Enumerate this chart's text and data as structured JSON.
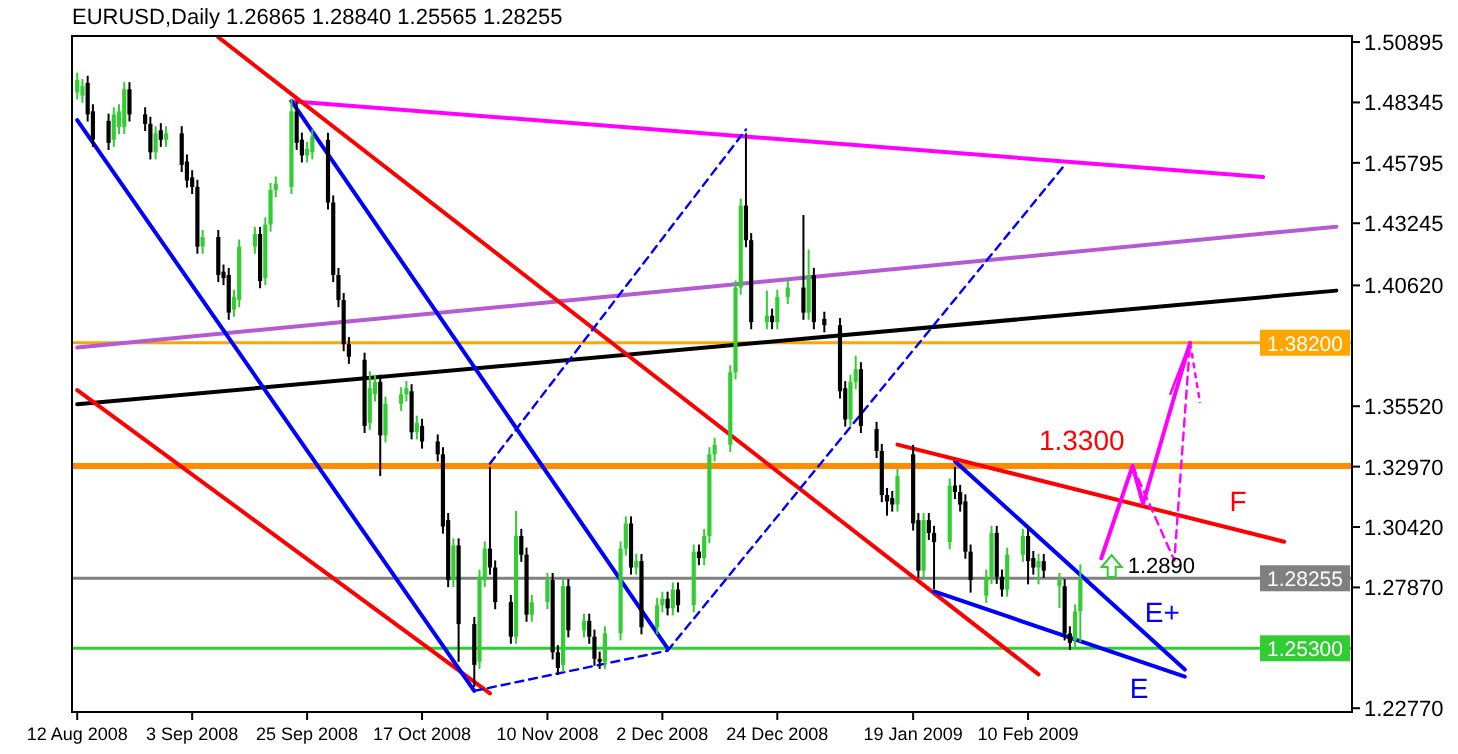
{
  "chart_data": {
    "type": "candlestick",
    "title": "EURUSD,Daily 1.26865 1.28840 1.25565 1.28255",
    "colors": [
      "#32cd32",
      "#32cd32",
      "#000000",
      "#000000",
      "#000000",
      "#32cd32",
      "#32cd32",
      "#32cd32",
      "#000000",
      "#000000",
      "#000000",
      "#32cd32",
      "#000000",
      "#32cd32",
      "#000000",
      "#000000",
      "#000000",
      "#000000",
      "#32cd32",
      "#000000",
      "#000000",
      "#000000",
      "#32cd32",
      "#32cd32",
      "#32cd32",
      "#000000",
      "#32cd32",
      "#32cd32",
      "#32cd32",
      "#32cd32",
      "#000000",
      "#000000",
      "#32cd32",
      "#32cd32",
      "#000000",
      "#000000",
      "#000000",
      "#000000",
      "#000000",
      "#000000",
      "#32cd32",
      "#32cd32",
      "#000000",
      "#32cd32",
      "#32cd32",
      "#32cd32",
      "#000000",
      "#32cd32",
      "#000000",
      "#000000",
      "#000000",
      "#000000",
      "#32cd32",
      "#000000",
      "#000000",
      "#32cd32",
      "#32cd32",
      "#000000",
      "#000000",
      "#000000",
      "#32cd32",
      "#000000",
      "#000000",
      "#32cd32",
      "#32cd32",
      "#000000",
      "#000000",
      "#32cd32",
      "#000000",
      "#32cd32",
      "#000000",
      "#000000",
      "#000000",
      "#32cd32",
      "#32cd32",
      "#32cd32",
      "#000000",
      "#32cd32",
      "#000000",
      "#32cd32",
      "#32cd32",
      "#000000",
      "#32cd32",
      "#000000",
      "#32cd32",
      "#000000",
      "#32cd32",
      "#32cd32",
      "#32cd32",
      "#32cd32",
      "#32cd32",
      "#32cd32",
      "#000000",
      "#000000",
      "#32cd32",
      "#000000",
      "#32cd32",
      "#32cd32",
      "#000000",
      "#32cd32",
      "#000000",
      "#000000",
      "#000000",
      "#000000",
      "#32cd32",
      "#32cd32",
      "#000000",
      "#000000",
      "#000000",
      "#000000",
      "#000000",
      "#32cd32",
      "#000000",
      "#000000",
      "#32cd32",
      "#000000",
      "#000000",
      "#32cd32",
      "#000000",
      "#000000",
      "#000000",
      "#000000",
      "#32cd32",
      "#32cd32",
      "#000000",
      "#000000",
      "#32cd32",
      "#32cd32",
      "#000000",
      "#000000",
      "#32cd32",
      "#000000",
      "#32cd32",
      "#000000",
      "#000000",
      "#32cd32",
      "#32cd32"
    ],
    "xlim": [
      "2008-08-11",
      "2009-04-13"
    ],
    "xticks": [
      {
        "value": "2008-08-12",
        "label": "12 Aug 2008"
      },
      {
        "value": "2008-09-03",
        "label": "3 Sep 2008"
      },
      {
        "value": "2008-09-25",
        "label": "25 Sep 2008"
      },
      {
        "value": "2008-10-17",
        "label": "17 Oct 2008"
      },
      {
        "value": "2008-11-10",
        "label": "10 Nov 2008"
      },
      {
        "value": "2008-12-02",
        "label": "2 Dec 2008"
      },
      {
        "value": "2008-12-24",
        "label": "24 Dec 2008"
      },
      {
        "value": "2009-01-19",
        "label": "19 Jan 2009"
      },
      {
        "value": "2009-02-10",
        "label": "10 Feb 2009"
      }
    ],
    "ylim": [
      1.2261,
      1.5115
    ],
    "yticks": [
      1.50895,
      1.48345,
      1.45795,
      1.43245,
      {
        "value": 1.4062,
        "label": "1.40620"
      },
      {
        "value": 1.3552,
        "label": "1.35520"
      },
      {
        "value": 1.3297,
        "label": "1.32970"
      },
      {
        "value": 1.3042,
        "label": "1.30420"
      },
      {
        "value": 1.2787,
        "label": "1.27870"
      },
      {
        "value": 1.2277,
        "label": "1.22770"
      }
    ],
    "x": [
      "2008-08-12",
      "2008-08-13",
      "2008-08-14",
      "2008-08-15",
      "2008-08-18",
      "2008-08-19",
      "2008-08-20",
      "2008-08-21",
      "2008-08-22",
      "2008-08-25",
      "2008-08-26",
      "2008-08-27",
      "2008-08-28",
      "2008-08-29",
      "2008-09-01",
      "2008-09-02",
      "2008-09-03",
      "2008-09-04",
      "2008-09-05",
      "2008-09-08",
      "2008-09-09",
      "2008-09-10",
      "2008-09-11",
      "2008-09-12",
      "2008-09-15",
      "2008-09-16",
      "2008-09-17",
      "2008-09-18",
      "2008-09-19",
      "2008-09-22",
      "2008-09-23",
      "2008-09-24",
      "2008-09-25",
      "2008-09-26",
      "2008-09-29",
      "2008-09-30",
      "2008-10-01",
      "2008-10-02",
      "2008-10-03",
      "2008-10-06",
      "2008-10-07",
      "2008-10-08",
      "2008-10-09",
      "2008-10-10",
      "2008-10-13",
      "2008-10-14",
      "2008-10-15",
      "2008-10-16",
      "2008-10-17",
      "2008-10-20",
      "2008-10-21",
      "2008-10-22",
      "2008-10-23",
      "2008-10-24",
      "2008-10-27",
      "2008-10-28",
      "2008-10-29",
      "2008-10-30",
      "2008-10-31",
      "2008-11-03",
      "2008-11-04",
      "2008-11-05",
      "2008-11-06",
      "2008-11-07",
      "2008-11-10",
      "2008-11-11",
      "2008-11-12",
      "2008-11-13",
      "2008-11-14",
      "2008-11-17",
      "2008-11-18",
      "2008-11-19",
      "2008-11-20",
      "2008-11-21",
      "2008-11-24",
      "2008-11-25",
      "2008-11-26",
      "2008-11-27",
      "2008-11-28",
      "2008-12-01",
      "2008-12-02",
      "2008-12-03",
      "2008-12-04",
      "2008-12-05",
      "2008-12-08",
      "2008-12-09",
      "2008-12-10",
      "2008-12-11",
      "2008-12-12",
      "2008-12-15",
      "2008-12-16",
      "2008-12-17",
      "2008-12-18",
      "2008-12-19",
      "2008-12-22",
      "2008-12-23",
      "2008-12-24",
      "2008-12-26",
      "2008-12-29",
      "2008-12-30",
      "2008-12-31",
      "2009-01-02",
      "2009-01-05",
      "2009-01-06",
      "2009-01-07",
      "2009-01-08",
      "2009-01-09",
      "2009-01-12",
      "2009-01-13",
      "2009-01-14",
      "2009-01-15",
      "2009-01-16",
      "2009-01-19",
      "2009-01-20",
      "2009-01-21",
      "2009-01-22",
      "2009-01-23",
      "2009-01-26",
      "2009-01-27",
      "2009-01-28",
      "2009-01-29",
      "2009-01-30",
      "2009-02-02",
      "2009-02-03",
      "2009-02-04",
      "2009-02-05",
      "2009-02-06",
      "2009-02-09",
      "2009-02-10",
      "2009-02-11",
      "2009-02-12",
      "2009-02-13",
      "2009-02-16",
      "2009-02-17",
      "2009-02-18",
      "2009-02-19",
      "2009-02-20"
    ],
    "ohlc": [
      [
        1.4877,
        1.496,
        1.4847,
        1.493
      ],
      [
        1.4863,
        1.4933,
        1.4833,
        1.4903
      ],
      [
        1.4917,
        1.4947,
        1.4754,
        1.4784
      ],
      [
        1.4797,
        1.4827,
        1.4647,
        1.4677
      ],
      [
        1.4757,
        1.4787,
        1.4634,
        1.4664
      ],
      [
        1.4677,
        1.4814,
        1.4647,
        1.4784
      ],
      [
        1.4731,
        1.4827,
        1.4701,
        1.4797
      ],
      [
        1.4731,
        1.492,
        1.4701,
        1.489
      ],
      [
        1.489,
        1.492,
        1.4754,
        1.4784
      ],
      [
        1.4784,
        1.4814,
        1.4714,
        1.4744
      ],
      [
        1.4744,
        1.4774,
        1.4594,
        1.4624
      ],
      [
        1.4624,
        1.4734,
        1.4594,
        1.4704
      ],
      [
        1.4717,
        1.4747,
        1.4647,
        1.4677
      ],
      [
        1.4677,
        1.4734,
        1.4647,
        1.4704
      ],
      [
        1.4704,
        1.4734,
        1.4541,
        1.4571
      ],
      [
        1.4585,
        1.4615,
        1.4475,
        1.4505
      ],
      [
        1.4518,
        1.4548,
        1.4448,
        1.4478
      ],
      [
        1.4478,
        1.4508,
        1.4196,
        1.4226
      ],
      [
        1.4226,
        1.4296,
        1.4196,
        1.4266
      ],
      [
        1.4266,
        1.4296,
        1.4076,
        1.4106
      ],
      [
        1.412,
        1.415,
        1.4063,
        1.4093
      ],
      [
        1.4106,
        1.4136,
        1.3917,
        1.3947
      ],
      [
        1.396,
        1.4043,
        1.393,
        1.4013
      ],
      [
        1.4,
        1.4256,
        1.397,
        1.4226
      ],
      [
        1.4226,
        1.4309,
        1.4196,
        1.4279
      ],
      [
        1.4279,
        1.4309,
        1.405,
        1.408
      ],
      [
        1.4093,
        1.4349,
        1.4063,
        1.4319
      ],
      [
        1.4319,
        1.4495,
        1.4289,
        1.4465
      ],
      [
        1.4465,
        1.4522,
        1.4435,
        1.4492
      ],
      [
        1.4478,
        1.485,
        1.4448,
        1.4797
      ],
      [
        1.4797,
        1.484,
        1.4634,
        1.4664
      ],
      [
        1.4677,
        1.4707,
        1.4581,
        1.4611
      ],
      [
        1.4611,
        1.4668,
        1.4581,
        1.4638
      ],
      [
        1.4624,
        1.4721,
        1.4594,
        1.4691
      ],
      [
        1.4677,
        1.4707,
        1.4382,
        1.4412
      ],
      [
        1.4412,
        1.4442,
        1.4076,
        1.4106
      ],
      [
        1.4106,
        1.4136,
        1.397,
        1.4
      ],
      [
        1.4,
        1.403,
        1.3784,
        1.3814
      ],
      [
        1.3814,
        1.3844,
        1.3731,
        1.3761
      ],
      [
        1.3748,
        1.3778,
        1.3439,
        1.3469
      ],
      [
        1.3482,
        1.37,
        1.3452,
        1.3628
      ],
      [
        1.3602,
        1.3685,
        1.3572,
        1.3655
      ],
      [
        1.3655,
        1.3685,
        1.3257,
        1.3429
      ],
      [
        1.3429,
        1.3592,
        1.3399,
        1.3562
      ],
      [
        1.3562,
        1.3632,
        1.3532,
        1.3602
      ],
      [
        1.3602,
        1.3658,
        1.3572,
        1.3628
      ],
      [
        1.3615,
        1.3645,
        1.3412,
        1.3442
      ],
      [
        1.3442,
        1.3512,
        1.3412,
        1.3482
      ],
      [
        1.3469,
        1.3499,
        1.3373,
        1.3403
      ],
      [
        1.3403,
        1.3433,
        1.3319,
        1.3349
      ],
      [
        1.3349,
        1.3379,
        1.3014,
        1.3044
      ],
      [
        1.3071,
        1.3101,
        1.2788,
        1.2818
      ],
      [
        1.2818,
        1.2994,
        1.2788,
        1.2964
      ],
      [
        1.2964,
        1.2994,
        1.2473,
        1.2632
      ],
      [
        1.2632,
        1.2662,
        1.2367,
        1.246
      ],
      [
        1.2473,
        1.2862,
        1.2443,
        1.2832
      ],
      [
        1.2818,
        1.2981,
        1.2788,
        1.2951
      ],
      [
        1.2951,
        1.3296,
        1.2841,
        1.2871
      ],
      [
        1.2871,
        1.2901,
        1.2695,
        1.2725
      ],
      [
        1.2725,
        1.2755,
        1.2549,
        1.2579
      ],
      [
        1.2579,
        1.311,
        1.2549,
        1.3004
      ],
      [
        1.3004,
        1.3034,
        1.2895,
        1.2925
      ],
      [
        1.2925,
        1.2955,
        1.2642,
        1.2672
      ],
      [
        1.2672,
        1.2755,
        1.2642,
        1.2725
      ],
      [
        1.2725,
        1.2848,
        1.2695,
        1.2818
      ],
      [
        1.2818,
        1.2848,
        1.2483,
        1.2513
      ],
      [
        1.2513,
        1.2543,
        1.2417,
        1.2447
      ],
      [
        1.246,
        1.2822,
        1.243,
        1.2792
      ],
      [
        1.2792,
        1.2822,
        1.2576,
        1.2606
      ],
      [
        1.2606,
        1.2676,
        1.2576,
        1.2646
      ],
      [
        1.2646,
        1.2676,
        1.2549,
        1.2579
      ],
      [
        1.2579,
        1.2609,
        1.2456,
        1.2486
      ],
      [
        1.2486,
        1.2516,
        1.2443,
        1.2473
      ],
      [
        1.2473,
        1.2623,
        1.2443,
        1.2593
      ],
      [
        1.2593,
        1.2981,
        1.2563,
        1.2951
      ],
      [
        1.2951,
        1.3087,
        1.2921,
        1.3057
      ],
      [
        1.3057,
        1.3087,
        1.2841,
        1.2871
      ],
      [
        1.2871,
        1.2928,
        1.2841,
        1.2898
      ],
      [
        1.2898,
        1.2928,
        1.2589,
        1.2619
      ],
      [
        1.2619,
        1.2742,
        1.2589,
        1.2712
      ],
      [
        1.2712,
        1.2769,
        1.2682,
        1.2739
      ],
      [
        1.2739,
        1.2769,
        1.2669,
        1.2699
      ],
      [
        1.2699,
        1.2808,
        1.2669,
        1.2778
      ],
      [
        1.2778,
        1.2808,
        1.2682,
        1.2712
      ],
      [
        1.2712,
        1.2968,
        1.2682,
        1.2938
      ],
      [
        1.2938,
        1.2968,
        1.2881,
        1.2911
      ],
      [
        1.2911,
        1.3034,
        1.2881,
        1.3004
      ],
      [
        1.3004,
        1.3379,
        1.2974,
        1.3349
      ],
      [
        1.3349,
        1.3419,
        1.3319,
        1.3389
      ],
      [
        1.3389,
        1.3725,
        1.3359,
        1.3695
      ],
      [
        1.3695,
        1.4083,
        1.3665,
        1.4053
      ],
      [
        1.4053,
        1.4429,
        1.4023,
        1.4399
      ],
      [
        1.4399,
        1.4704,
        1.4223,
        1.4253
      ],
      [
        1.4253,
        1.4283,
        1.3877,
        1.3907
      ],
      [
        1.3907,
        1.404,
        1.3877,
        1.3934
      ],
      [
        1.3934,
        1.3964,
        1.3877,
        1.3907
      ],
      [
        1.3907,
        1.4043,
        1.3877,
        1.4013
      ],
      [
        1.4013,
        1.4083,
        1.3983,
        1.4053
      ],
      [
        1.4053,
        1.4359,
        1.3917,
        1.3947
      ],
      [
        1.3947,
        1.4213,
        1.3917,
        1.4106
      ],
      [
        1.4106,
        1.4136,
        1.3877,
        1.3907
      ],
      [
        1.3921,
        1.3951,
        1.3864,
        1.3894
      ],
      [
        1.3894,
        1.3924,
        1.3585,
        1.3615
      ],
      [
        1.3628,
        1.3658,
        1.3466,
        1.3496
      ],
      [
        1.3496,
        1.3685,
        1.3466,
        1.3655
      ],
      [
        1.3655,
        1.3765,
        1.3625,
        1.3708
      ],
      [
        1.3708,
        1.3738,
        1.3439,
        1.3469
      ],
      [
        1.3456,
        1.3486,
        1.3333,
        1.3363
      ],
      [
        1.3363,
        1.3393,
        1.3147,
        1.3177
      ],
      [
        1.3177,
        1.3207,
        1.309,
        1.315
      ],
      [
        1.3164,
        1.3194,
        1.3107,
        1.3137
      ],
      [
        1.3137,
        1.3287,
        1.3107,
        1.3257
      ],
      [
        1.3349,
        1.3389,
        1.3027,
        1.3057
      ],
      [
        1.3071,
        1.3101,
        1.2828,
        1.2858
      ],
      [
        1.2858,
        1.3101,
        1.2828,
        1.3071
      ],
      [
        1.3071,
        1.3101,
        1.2987,
        1.3017
      ],
      [
        1.3017,
        1.3047,
        1.278,
        1.2978
      ],
      [
        1.2978,
        1.3247,
        1.2948,
        1.3217
      ],
      [
        1.3217,
        1.3296,
        1.316,
        1.319
      ],
      [
        1.319,
        1.322,
        1.3107,
        1.3137
      ],
      [
        1.315,
        1.318,
        1.2908,
        1.2938
      ],
      [
        1.2938,
        1.2968,
        1.2765,
        1.2818
      ],
      [
        1.2752,
        1.2862,
        1.2722,
        1.2832
      ],
      [
        1.2832,
        1.3047,
        1.2802,
        1.3017
      ],
      [
        1.3017,
        1.3047,
        1.2802,
        1.2832
      ],
      [
        1.2832,
        1.2862,
        1.2748,
        1.2778
      ],
      [
        1.2778,
        1.2955,
        1.2748,
        1.2925
      ],
      [
        1.2925,
        1.3034,
        1.2895,
        1.3004
      ],
      [
        1.3004,
        1.3034,
        1.28,
        1.2898
      ],
      [
        1.2911,
        1.2941,
        1.2841,
        1.2871
      ],
      [
        1.2871,
        1.2928,
        1.28,
        1.2898
      ],
      [
        1.2898,
        1.2928,
        1.2828,
        1.2858
      ],
      [
        1.2792,
        1.2848,
        1.27,
        1.2818
      ],
      [
        1.2792,
        1.2822,
        1.2563,
        1.2593
      ],
      [
        1.2593,
        1.2623,
        1.2523,
        1.2553
      ],
      [
        1.2566,
        1.2715,
        1.2536,
        1.2685
      ],
      [
        1.26865,
        1.2884,
        1.25565,
        1.28255
      ]
    ],
    "series": [
      {
        "type": "line",
        "color": "#ff00ff",
        "x": [
          "2008-09-22",
          "2009-03-27"
        ],
        "values": [
          1.484,
          1.452
        ]
      },
      {
        "type": "line",
        "color": "#b45ad2",
        "x": [
          "2008-08-12",
          "2009-04-10"
        ],
        "values": [
          1.38,
          1.431
        ]
      },
      {
        "type": "line",
        "color": "#000000",
        "x": [
          "2008-08-12",
          "2009-04-10"
        ],
        "values": [
          1.356,
          1.404
        ]
      },
      {
        "type": "line",
        "color": "#ff0000",
        "x": [
          "2008-09-08",
          "2009-02-12"
        ],
        "values": [
          1.511,
          1.242
        ]
      },
      {
        "type": "line",
        "color": "#ff0000",
        "x": [
          "2008-08-12",
          "2008-10-30"
        ],
        "values": [
          1.362,
          1.234
        ]
      },
      {
        "type": "line",
        "color": "#0000ff",
        "x": [
          "2008-08-12",
          "2008-10-27"
        ],
        "values": [
          1.476,
          1.235
        ]
      },
      {
        "type": "line",
        "color": "#0000ff",
        "x": [
          "2008-09-22",
          "2008-12-03"
        ],
        "values": [
          1.484,
          1.253
        ]
      },
      {
        "type": "line",
        "name": "E+",
        "color": "#0000ff",
        "x": [
          "2009-01-27",
          "2009-03-12"
        ],
        "values": [
          1.332,
          1.244
        ]
      },
      {
        "type": "line",
        "name": "E",
        "color": "#0000ff",
        "x": [
          "2009-01-23",
          "2009-03-12"
        ],
        "values": [
          1.277,
          1.241
        ]
      },
      {
        "type": "line",
        "name": "F",
        "color": "#ff0000",
        "x": [
          "2009-01-16",
          "2009-03-31"
        ],
        "values": [
          1.339,
          1.298
        ]
      },
      {
        "type": "line",
        "color": "#0000ff",
        "line_style": "dashed",
        "x": [
          "2008-10-27",
          "2008-12-03"
        ],
        "values": [
          1.235,
          1.252
        ]
      },
      {
        "type": "line",
        "color": "#0000ff",
        "line_style": "dashed",
        "x": [
          "2008-10-30",
          "2008-12-18"
        ],
        "values": [
          1.331,
          1.472
        ]
      },
      {
        "type": "line",
        "color": "#0000ff",
        "line_style": "dashed",
        "x": [
          "2008-12-03",
          "2009-02-17"
        ],
        "values": [
          1.252,
          1.457
        ]
      },
      {
        "type": "line",
        "color": "#ff00ff",
        "x": [
          "2009-02-24",
          "2009-03-02",
          "2009-03-04",
          "2009-03-13"
        ],
        "values": [
          1.291,
          1.33,
          1.314,
          1.382
        ]
      },
      {
        "type": "line",
        "color": "#ff00ff",
        "line_style": "dashed",
        "x": [
          "2009-03-02",
          "2009-03-10",
          "2009-03-13"
        ],
        "values": [
          1.33,
          1.29,
          1.382
        ]
      }
    ],
    "ref_lines": [
      {
        "axis": "y",
        "value": 1.382,
        "label": "1.38200",
        "color": "#ffa500"
      },
      {
        "axis": "y",
        "value": 1.33,
        "color": "#ff8c00"
      },
      {
        "axis": "y",
        "value": 1.28255,
        "label": "1.28255",
        "color": "#808080"
      },
      {
        "axis": "y",
        "value": 1.253,
        "label": "1.25300",
        "color": "#32cd32"
      }
    ],
    "annotations": [
      {
        "text": "1.3300",
        "x": "2009-03-02",
        "y": 1.33
      },
      {
        "text": "1.2890",
        "x": "2009-02-26",
        "y": 1.289
      }
    ]
  }
}
